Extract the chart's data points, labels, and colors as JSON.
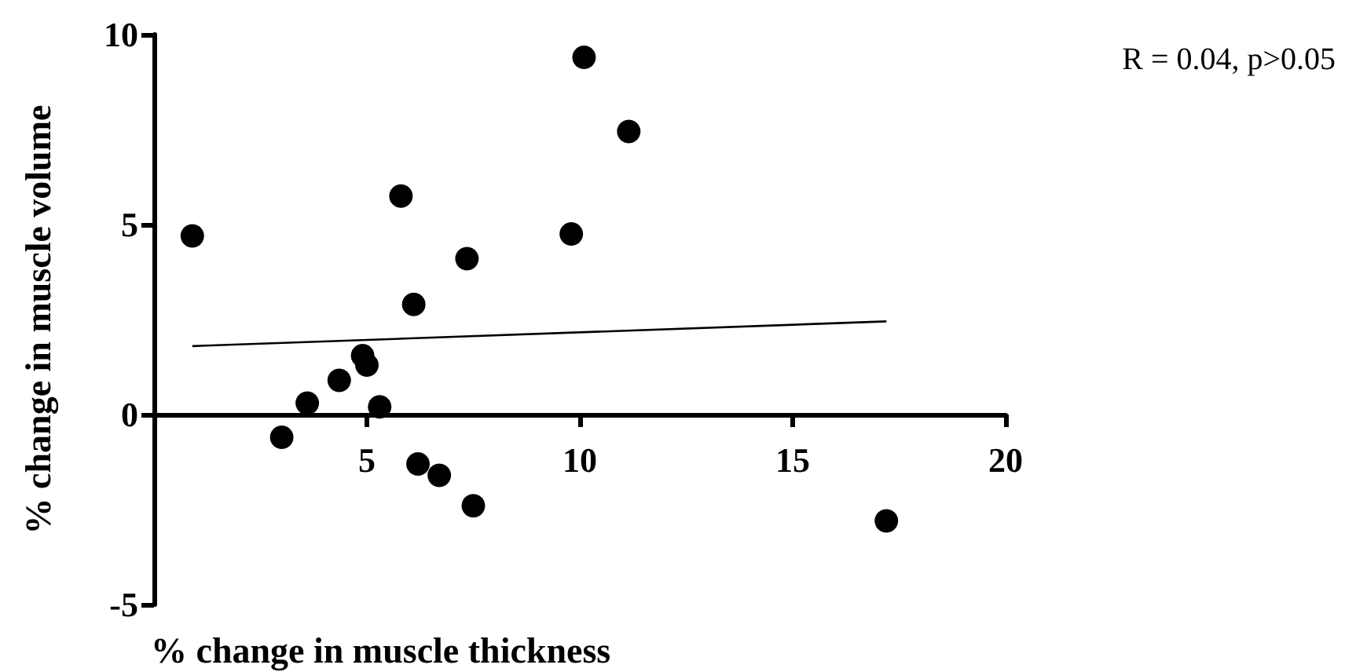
{
  "chart_data": {
    "type": "scatter",
    "xlabel": "% change in muscle thickness",
    "ylabel": "% change in muscle volume",
    "annotations": [
      "R = 0.04, p>0.05"
    ],
    "xlim": [
      0,
      20
    ],
    "xticks": [
      5,
      10,
      15,
      20
    ],
    "ylim": [
      -5,
      10
    ],
    "yticks": [
      -5,
      0,
      5,
      10
    ],
    "grid": false,
    "marker": "circle",
    "series": [
      {
        "color": "#000000",
        "x": [
          0.9,
          3.0,
          3.6,
          4.35,
          4.9,
          5.0,
          5.3,
          5.8,
          6.1,
          6.2,
          6.7,
          7.5,
          7.35,
          9.8,
          10.1,
          11.15,
          17.2
        ],
        "values": [
          4.7,
          -0.6,
          0.3,
          0.9,
          1.55,
          1.3,
          0.2,
          5.75,
          2.9,
          -1.3,
          -1.6,
          -2.4,
          4.1,
          4.75,
          9.4,
          7.45,
          -2.8
        ]
      },
      {
        "type": "line",
        "color": "#000000",
        "x": [
          0.9,
          17.2
        ],
        "values": [
          1.8,
          2.45
        ],
        "marker": "none"
      }
    ]
  }
}
